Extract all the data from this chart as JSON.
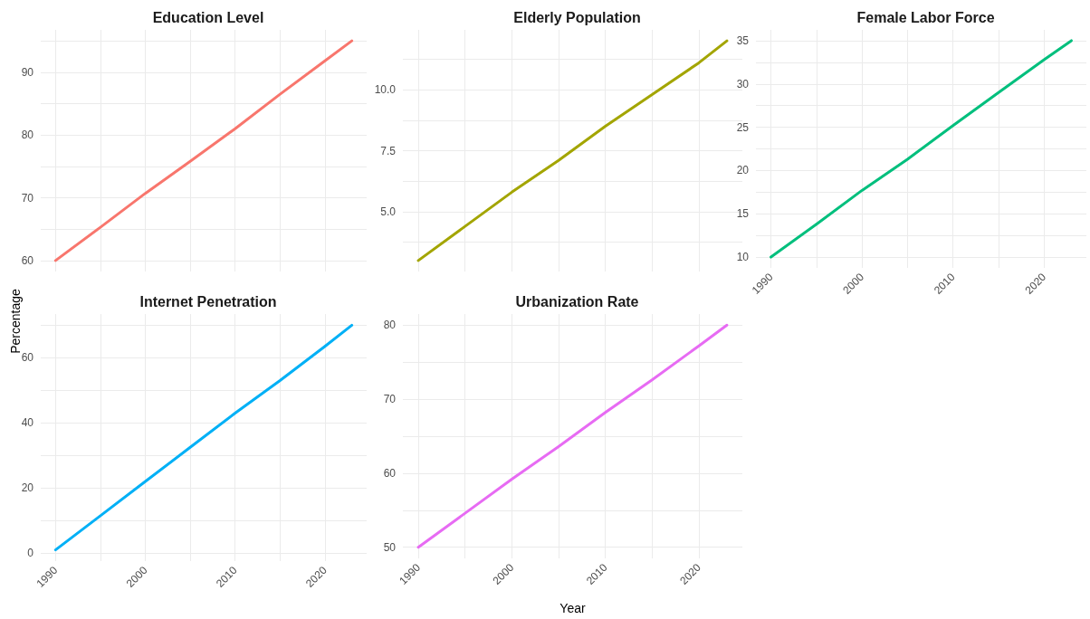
{
  "chart_data": [
    {
      "type": "line",
      "title": "Education Level",
      "x": [
        1990,
        1995,
        2000,
        2005,
        2010,
        2015,
        2020,
        2023
      ],
      "series": [
        {
          "color": "#f8766d",
          "values": [
            60,
            65.3,
            70.7,
            75.8,
            81,
            86.5,
            91.8,
            95
          ]
        }
      ],
      "xlim": [
        1988.35,
        2024.65
      ],
      "xticks": [
        1990,
        {
          "value": 1995,
          "label": null
        },
        2000,
        {
          "value": 2005,
          "label": null
        },
        2010,
        {
          "value": 2015,
          "label": null
        },
        2020
      ],
      "ylim": [
        58.25,
        96.75
      ],
      "yticks": [
        {
          "value": 60,
          "label": "60"
        },
        {
          "value": 65,
          "label": null
        },
        70,
        {
          "value": 75,
          "label": null
        },
        80,
        {
          "value": 85,
          "label": null
        },
        90,
        {
          "value": 95,
          "label": null
        }
      ],
      "grid": true,
      "tick_labels": "y"
    },
    {
      "type": "line",
      "title": "Elderly Population",
      "x": [
        1990,
        1995,
        2000,
        2005,
        2010,
        2015,
        2020,
        2023
      ],
      "series": [
        {
          "color": "#a3a500",
          "values": [
            3,
            4.4,
            5.8,
            7.1,
            8.5,
            9.8,
            11.1,
            12
          ]
        }
      ],
      "xlim": [
        1988.35,
        2024.65
      ],
      "xticks": [
        1990,
        {
          "value": 1995,
          "label": null
        },
        2000,
        {
          "value": 2005,
          "label": null
        },
        2010,
        {
          "value": 2015,
          "label": null
        },
        2020
      ],
      "ylim": [
        2.55,
        12.45
      ],
      "yticks": [
        {
          "value": 3.75,
          "label": null
        },
        {
          "value": 5,
          "label": "5.0"
        },
        {
          "value": 6.25,
          "label": null
        },
        7.5,
        {
          "value": 8.75,
          "label": null
        },
        {
          "value": 10,
          "label": "10.0"
        },
        {
          "value": 11.25,
          "label": null
        }
      ],
      "grid": true,
      "tick_labels": "y"
    },
    {
      "type": "line",
      "title": "Female Labor Force",
      "x": [
        1990,
        1995,
        2000,
        2005,
        2010,
        2015,
        2020,
        2023
      ],
      "series": [
        {
          "color": "#00bf7d",
          "values": [
            10,
            13.8,
            17.7,
            21.3,
            25.2,
            29,
            32.8,
            35
          ]
        }
      ],
      "xlim": [
        1988.35,
        2024.65
      ],
      "xticks": [
        1990,
        {
          "value": 1995,
          "label": null
        },
        2000,
        {
          "value": 2005,
          "label": null
        },
        2010,
        {
          "value": 2015,
          "label": null
        },
        2020
      ],
      "ylim": [
        8.75,
        36.25
      ],
      "yticks": [
        10,
        {
          "value": 12.5,
          "label": null
        },
        15,
        {
          "value": 17.5,
          "label": null
        },
        20,
        {
          "value": 22.5,
          "label": null
        },
        25,
        {
          "value": 27.5,
          "label": null
        },
        30,
        {
          "value": 32.5,
          "label": null
        },
        35
      ],
      "grid": true
    },
    {
      "type": "line",
      "title": "Internet Penetration",
      "ylabel": "Percentage",
      "x": [
        1990,
        1995,
        2000,
        2005,
        2010,
        2015,
        2020,
        2023
      ],
      "series": [
        {
          "color": "#00b0f6",
          "values": [
            1,
            11.5,
            22,
            32.5,
            43,
            53,
            63.5,
            70
          ]
        }
      ],
      "xlim": [
        1988.35,
        2024.65
      ],
      "xticks": [
        1990,
        {
          "value": 1995,
          "label": null
        },
        2000,
        {
          "value": 2005,
          "label": null
        },
        2010,
        {
          "value": 2015,
          "label": null
        },
        2020
      ],
      "ylim": [
        -2.45,
        73.45
      ],
      "yticks": [
        0,
        {
          "value": 10,
          "label": null
        },
        20,
        {
          "value": 30,
          "label": null
        },
        40,
        {
          "value": 50,
          "label": null
        },
        60,
        {
          "value": 70,
          "label": null
        }
      ],
      "grid": true
    },
    {
      "type": "line",
      "title": "Urbanization Rate",
      "xlabel": "Year",
      "x": [
        1990,
        1995,
        2000,
        2005,
        2010,
        2015,
        2020,
        2023
      ],
      "series": [
        {
          "color": "#e76bf3",
          "values": [
            50,
            54.6,
            59.2,
            63.6,
            68.2,
            72.6,
            77.2,
            80
          ]
        }
      ],
      "xlim": [
        1988.35,
        2024.65
      ],
      "xticks": [
        1990,
        {
          "value": 1995,
          "label": null
        },
        2000,
        {
          "value": 2005,
          "label": null
        },
        2010,
        {
          "value": 2015,
          "label": null
        },
        2020
      ],
      "ylim": [
        48.5,
        81.5
      ],
      "yticks": [
        50,
        {
          "value": 55,
          "label": null
        },
        60,
        {
          "value": 65,
          "label": null
        },
        70,
        {
          "value": 75,
          "label": null
        },
        80
      ],
      "grid": true
    }
  ]
}
